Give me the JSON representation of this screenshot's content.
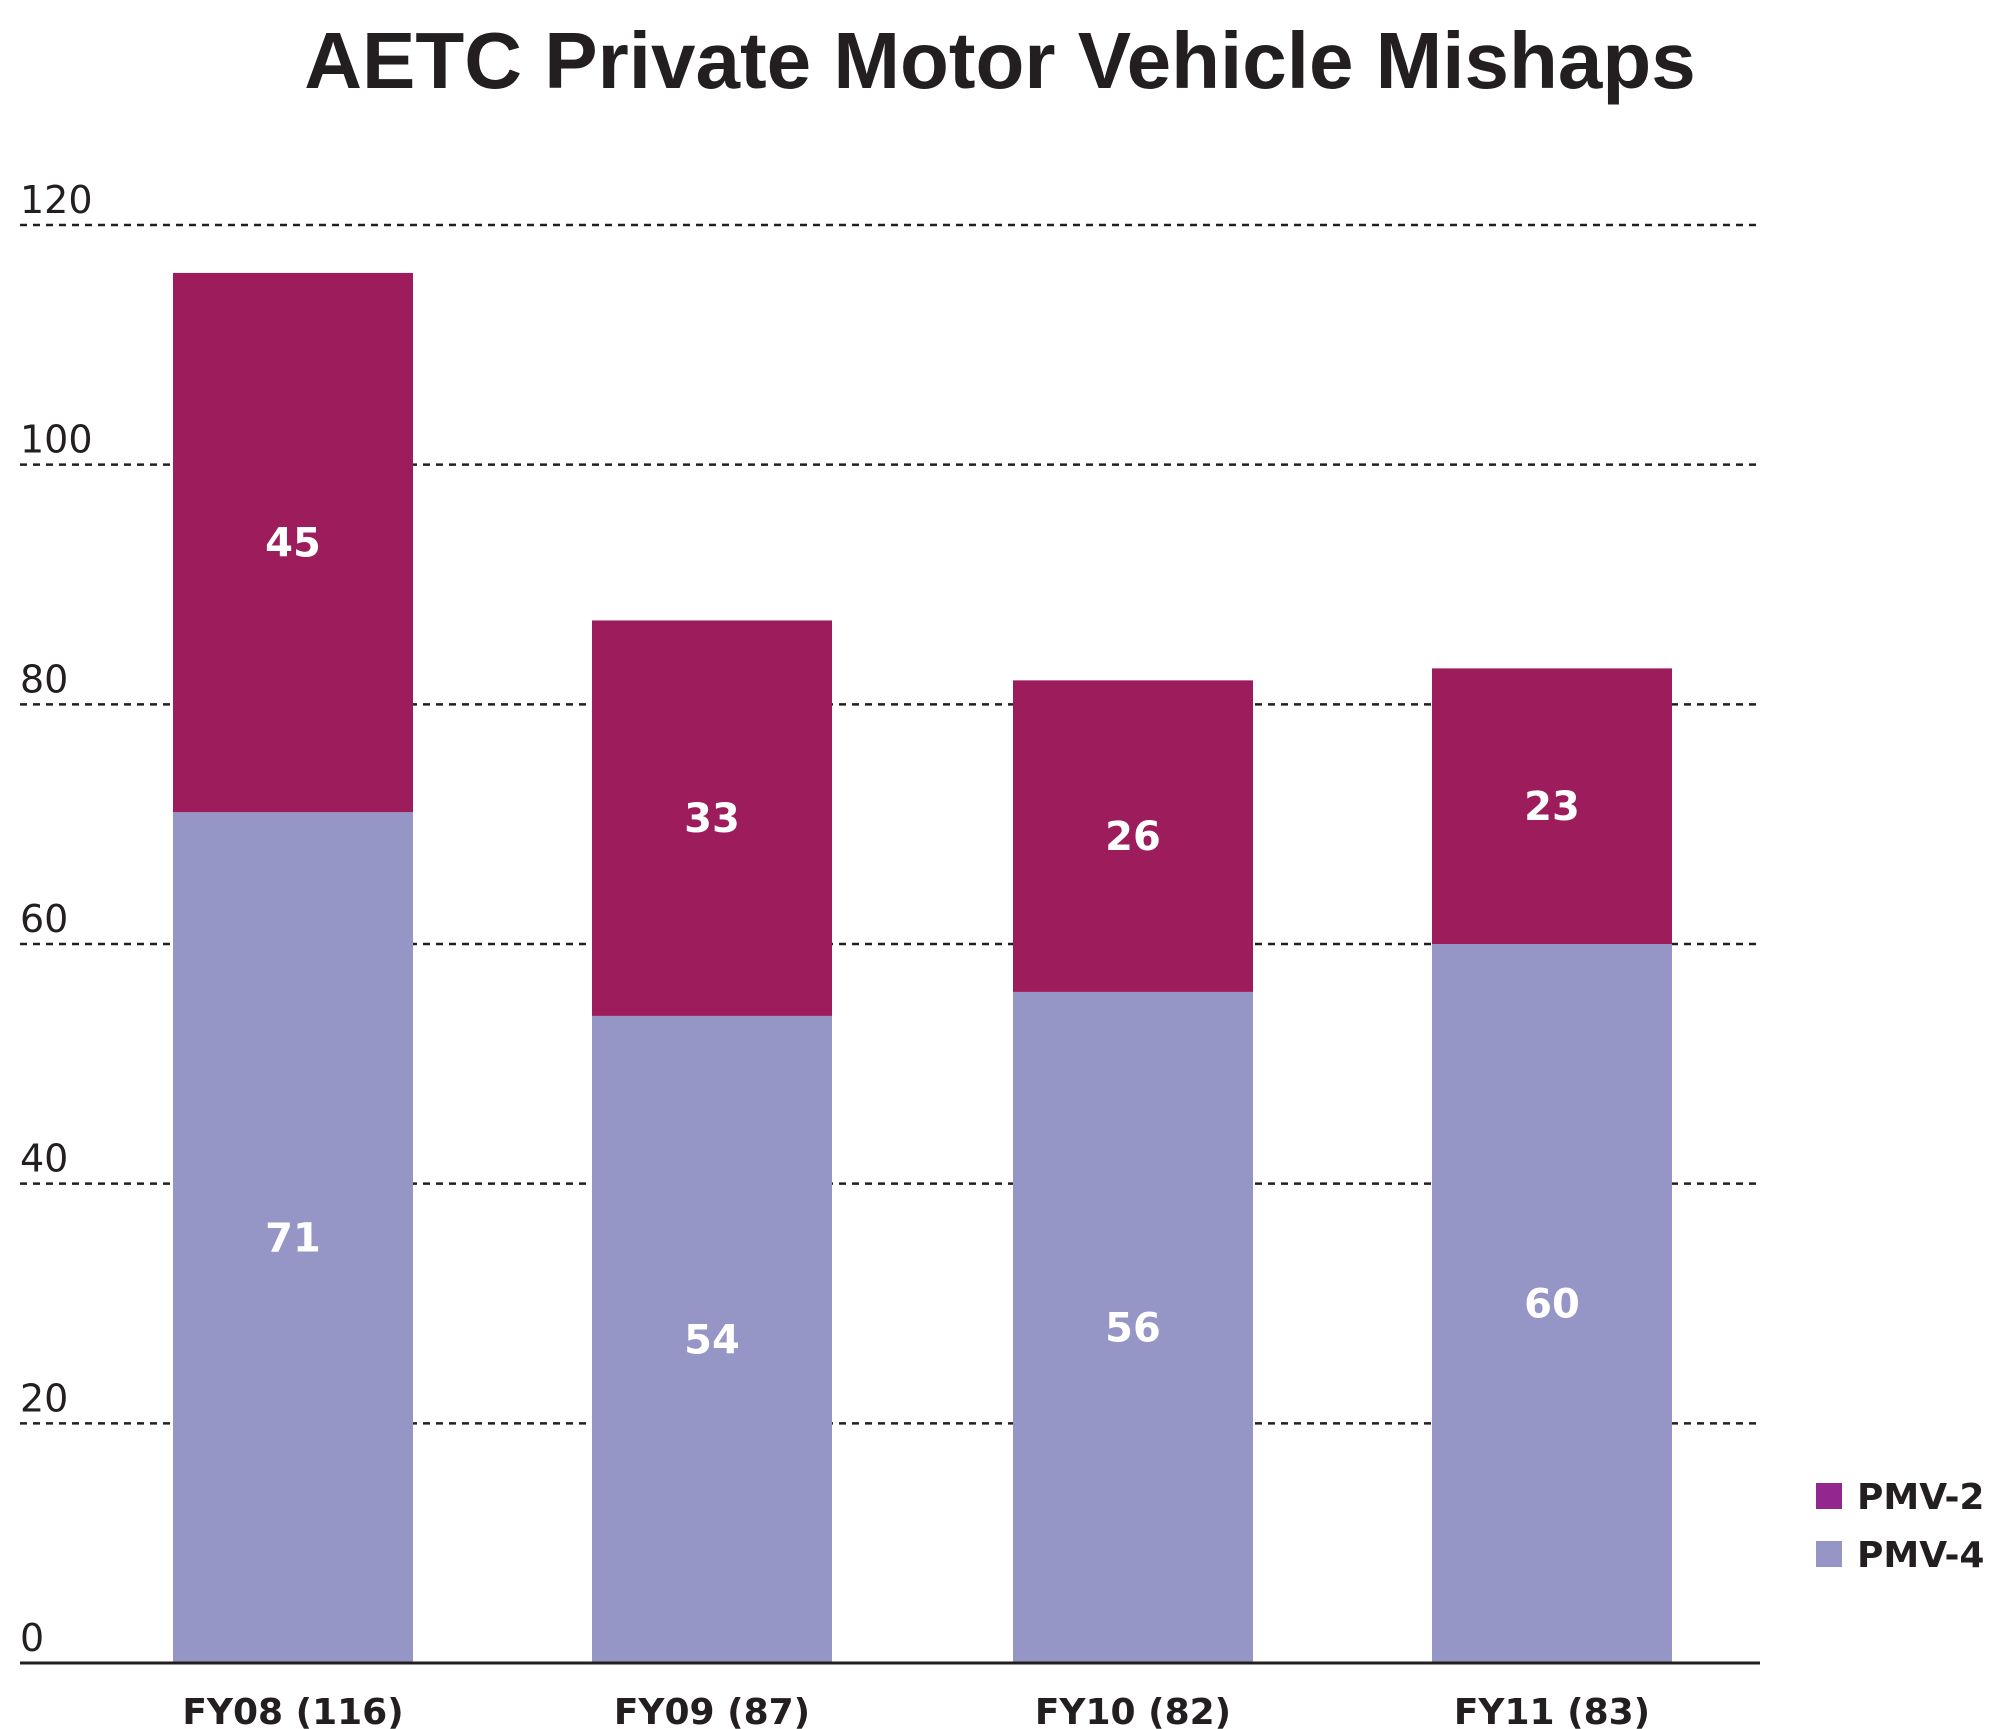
{
  "chart_data": {
    "type": "bar",
    "stacked": true,
    "title": "AETC Private Motor Vehicle Mishaps",
    "xlabel": "",
    "ylabel": "",
    "categories": [
      "FY08 (116)",
      "FY09 (87)",
      "FY10 (82)",
      "FY11 (83)"
    ],
    "series": [
      {
        "name": "PMV-4",
        "values": [
          71,
          54,
          56,
          60
        ],
        "color": "#9595c6"
      },
      {
        "name": "PMV-2",
        "values": [
          45,
          33,
          26,
          23
        ],
        "color": "#9c1c5c"
      }
    ],
    "legend": {
      "position": "bottom-right",
      "items": [
        {
          "label": "PMV-2",
          "color": "#93268f"
        },
        {
          "label": "PMV-4",
          "color": "#9595c6"
        }
      ]
    },
    "ylim": [
      0,
      120
    ],
    "yticks": [
      0,
      20,
      40,
      60,
      80,
      100,
      120
    ],
    "grid": true,
    "grid_style": "dashed"
  }
}
